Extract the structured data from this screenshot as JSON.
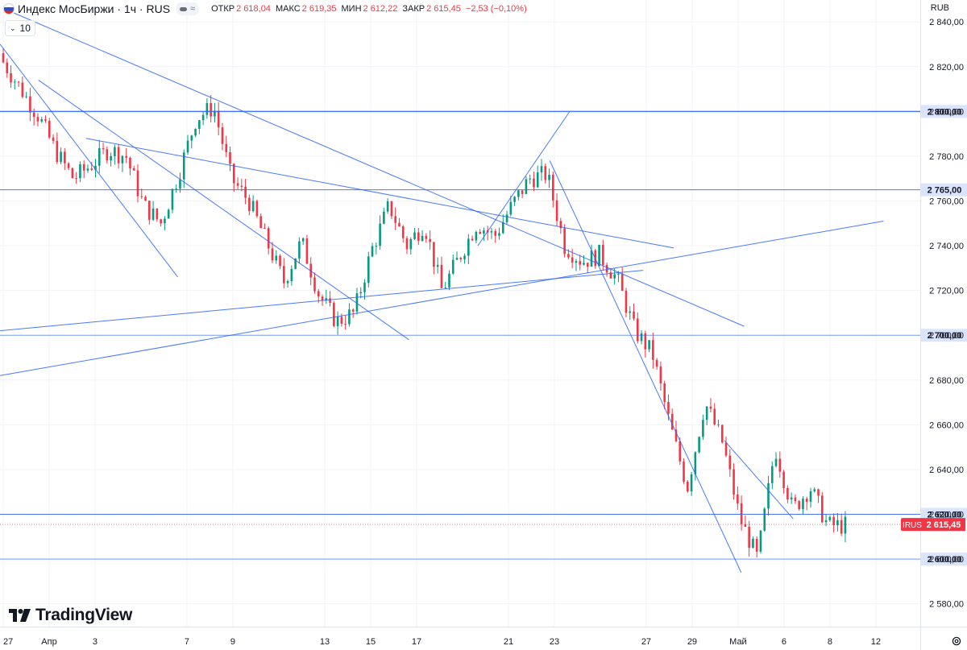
{
  "header": {
    "title": "Индекс МосБиржи · 1ч · RUS",
    "open_label": "ОТКР",
    "open_value": "2 618,04",
    "high_label": "МАКС",
    "high_value": "2 619,35",
    "low_label": "МИН",
    "low_value": "2 612,22",
    "close_label": "ЗАКР",
    "close_value": "2 615,45",
    "change": "−2,53 (−0,10%)",
    "currency": "RUB",
    "pill_glyph": "≈"
  },
  "indicator": {
    "label": "10"
  },
  "logo": {
    "text": "TradingView"
  },
  "colors": {
    "up": "#089981",
    "down": "#f23645",
    "line": "#2962ff",
    "badge": "#f23645"
  },
  "chart_data": {
    "type": "candlestick",
    "symbol": "IRUS",
    "timeframe": "1h",
    "ylim": [
      2568,
      2848
    ],
    "y_ticks": [
      2580,
      2600,
      2620,
      2640,
      2660,
      2680,
      2700,
      2720,
      2740,
      2760,
      2780,
      2800,
      2820,
      2840
    ],
    "y_tick_labels": [
      "2 580,00",
      "2 600,00",
      "2 620,00",
      "2 640,00",
      "2 660,00",
      "2 680,00",
      "2 700,00",
      "2 720,00",
      "2 740,00",
      "2 760,00",
      "2 780,00",
      "2 800,00",
      "2 820,00",
      "2 840,00"
    ],
    "x_labels": [
      "27",
      "Апр",
      "3",
      "7",
      "9",
      "13",
      "15",
      "17",
      "21",
      "23",
      "27",
      "29",
      "Май",
      "6",
      "8",
      "12"
    ],
    "x_label_positions": [
      0,
      3,
      6,
      12,
      15,
      21,
      24,
      27,
      33,
      36,
      42,
      45,
      48,
      51,
      54,
      57
    ],
    "x_count": 60,
    "session_closes": [
      2822,
      2810,
      2798,
      2782,
      2770,
      2776,
      2783,
      2780,
      2758,
      2750,
      2772,
      2797,
      2802,
      2770,
      2760,
      2742,
      2724,
      2742,
      2718,
      2706,
      2710,
      2738,
      2758,
      2740,
      2750,
      2720,
      2735,
      2750,
      2744,
      2758,
      2770,
      2772,
      2740,
      2733,
      2736,
      2725,
      2702,
      2692,
      2660,
      2632,
      2670,
      2652,
      2618,
      2600,
      2650,
      2622,
      2632,
      2615,
      2615
    ],
    "horizontal_levels": [
      {
        "value": 2800,
        "label": "2 800,00",
        "highlight": true
      },
      {
        "value": 2765,
        "label": "2 765,00",
        "highlight": true
      },
      {
        "value": 2700,
        "label": "2 700,00",
        "highlight": true
      },
      {
        "value": 2620,
        "label": "2 620,00",
        "highlight": true
      },
      {
        "value": 2600,
        "label": "2 600,00",
        "highlight": true
      }
    ],
    "trend_lines": [
      {
        "from": [
          -0.2,
          2830
        ],
        "to": [
          11.4,
          2726
        ]
      },
      {
        "from": [
          2.3,
          2814
        ],
        "to": [
          26.5,
          2698
        ]
      },
      {
        "from": [
          5.4,
          2788
        ],
        "to": [
          43.8,
          2739
        ]
      },
      {
        "from": [
          -0.2,
          2702
        ],
        "to": [
          41.8,
          2729
        ]
      },
      {
        "from": [
          -0.2,
          2682
        ],
        "to": [
          57.5,
          2751
        ]
      },
      {
        "from": [
          0.7,
          2844
        ],
        "to": [
          48.4,
          2704
        ]
      },
      {
        "from": [
          31,
          2740
        ],
        "to": [
          37,
          2800
        ]
      },
      {
        "from": [
          35.7,
          2778
        ],
        "to": [
          48.2,
          2594
        ]
      },
      {
        "from": [
          47.1,
          2653
        ],
        "to": [
          51.6,
          2618
        ]
      }
    ],
    "last_price": {
      "value": 2615.45,
      "label": "2 615,45",
      "tag": "IRUS"
    }
  }
}
